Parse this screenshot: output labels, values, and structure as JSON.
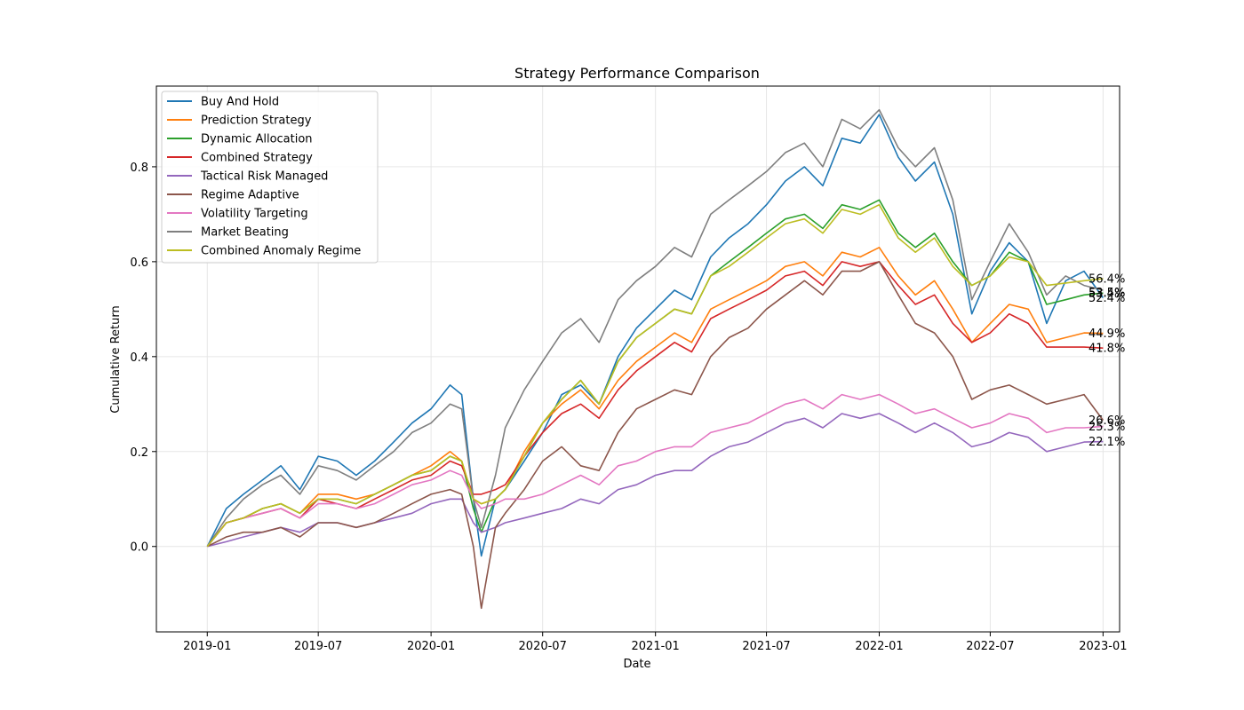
{
  "chart_data": {
    "type": "line",
    "title": "Strategy Performance Comparison",
    "xlabel": "Date",
    "ylabel": "Cumulative Return",
    "xlim": [
      "2018-10-10",
      "2023-01-28"
    ],
    "ylim": [
      -0.18,
      0.97
    ],
    "x_ticks": [
      "2019-01",
      "2019-07",
      "2020-01",
      "2020-07",
      "2021-01",
      "2021-07",
      "2022-01",
      "2022-07",
      "2023-01"
    ],
    "y_ticks": [
      0.0,
      0.2,
      0.4,
      0.6,
      0.8
    ],
    "y_tick_labels": [
      "0.0",
      "0.2",
      "0.4",
      "0.6",
      "0.8"
    ],
    "grid": true,
    "legend_position": "top-left",
    "dates": [
      "2019-01-01",
      "2019-02-01",
      "2019-03-01",
      "2019-04-01",
      "2019-05-01",
      "2019-06-01",
      "2019-07-01",
      "2019-08-01",
      "2019-09-01",
      "2019-10-01",
      "2019-11-01",
      "2019-12-01",
      "2020-01-01",
      "2020-02-01",
      "2020-02-20",
      "2020-03-10",
      "2020-03-23",
      "2020-04-15",
      "2020-05-01",
      "2020-06-01",
      "2020-07-01",
      "2020-08-01",
      "2020-09-01",
      "2020-10-01",
      "2020-11-01",
      "2020-12-01",
      "2021-01-01",
      "2021-02-01",
      "2021-03-01",
      "2021-04-01",
      "2021-05-01",
      "2021-06-01",
      "2021-07-01",
      "2021-08-01",
      "2021-09-01",
      "2021-10-01",
      "2021-11-01",
      "2021-12-01",
      "2022-01-01",
      "2022-02-01",
      "2022-03-01",
      "2022-04-01",
      "2022-05-01",
      "2022-06-01",
      "2022-07-01",
      "2022-08-01",
      "2022-09-01",
      "2022-10-01",
      "2022-11-01",
      "2022-12-01",
      "2023-01-01"
    ],
    "series": [
      {
        "name": "Buy And Hold",
        "color": "#1f77b4",
        "values": [
          0.0,
          0.08,
          0.11,
          0.14,
          0.17,
          0.12,
          0.19,
          0.18,
          0.15,
          0.18,
          0.22,
          0.26,
          0.29,
          0.34,
          0.32,
          0.1,
          -0.02,
          0.1,
          0.12,
          0.18,
          0.24,
          0.32,
          0.34,
          0.3,
          0.4,
          0.46,
          0.5,
          0.54,
          0.52,
          0.61,
          0.65,
          0.68,
          0.72,
          0.77,
          0.8,
          0.76,
          0.86,
          0.85,
          0.91,
          0.82,
          0.77,
          0.81,
          0.7,
          0.49,
          0.58,
          0.64,
          0.6,
          0.47,
          0.56,
          0.58,
          0.524
        ]
      },
      {
        "name": "Prediction Strategy",
        "color": "#ff7f0e",
        "values": [
          0.0,
          0.05,
          0.06,
          0.08,
          0.09,
          0.07,
          0.11,
          0.11,
          0.1,
          0.11,
          0.13,
          0.15,
          0.17,
          0.2,
          0.18,
          0.1,
          0.09,
          0.1,
          0.12,
          0.2,
          0.26,
          0.3,
          0.33,
          0.29,
          0.35,
          0.39,
          0.42,
          0.45,
          0.43,
          0.5,
          0.52,
          0.54,
          0.56,
          0.59,
          0.6,
          0.57,
          0.62,
          0.61,
          0.63,
          0.57,
          0.53,
          0.56,
          0.5,
          0.43,
          0.47,
          0.51,
          0.5,
          0.43,
          0.44,
          0.45,
          0.449
        ]
      },
      {
        "name": "Dynamic Allocation",
        "color": "#2ca02c",
        "values": [
          0.0,
          0.05,
          0.06,
          0.08,
          0.09,
          0.07,
          0.1,
          0.1,
          0.09,
          0.11,
          0.13,
          0.15,
          0.16,
          0.19,
          0.18,
          0.08,
          0.03,
          0.1,
          0.12,
          0.19,
          0.26,
          0.31,
          0.35,
          0.3,
          0.39,
          0.44,
          0.47,
          0.5,
          0.49,
          0.57,
          0.6,
          0.63,
          0.66,
          0.69,
          0.7,
          0.67,
          0.72,
          0.71,
          0.73,
          0.66,
          0.63,
          0.66,
          0.6,
          0.55,
          0.57,
          0.62,
          0.6,
          0.51,
          0.52,
          0.53,
          0.534
        ]
      },
      {
        "name": "Combined Strategy",
        "color": "#d62728",
        "values": [
          0.0,
          0.05,
          0.06,
          0.07,
          0.08,
          0.06,
          0.1,
          0.09,
          0.08,
          0.1,
          0.12,
          0.14,
          0.15,
          0.18,
          0.17,
          0.11,
          0.11,
          0.12,
          0.13,
          0.19,
          0.24,
          0.28,
          0.3,
          0.27,
          0.33,
          0.37,
          0.4,
          0.43,
          0.41,
          0.48,
          0.5,
          0.52,
          0.54,
          0.57,
          0.58,
          0.55,
          0.6,
          0.59,
          0.6,
          0.55,
          0.51,
          0.53,
          0.47,
          0.43,
          0.45,
          0.49,
          0.47,
          0.42,
          0.42,
          0.42,
          0.418
        ]
      },
      {
        "name": "Tactical Risk Managed",
        "color": "#9467bd",
        "values": [
          0.0,
          0.01,
          0.02,
          0.03,
          0.04,
          0.03,
          0.05,
          0.05,
          0.04,
          0.05,
          0.06,
          0.07,
          0.09,
          0.1,
          0.1,
          0.05,
          0.03,
          0.04,
          0.05,
          0.06,
          0.07,
          0.08,
          0.1,
          0.09,
          0.12,
          0.13,
          0.15,
          0.16,
          0.16,
          0.19,
          0.21,
          0.22,
          0.24,
          0.26,
          0.27,
          0.25,
          0.28,
          0.27,
          0.28,
          0.26,
          0.24,
          0.26,
          0.24,
          0.21,
          0.22,
          0.24,
          0.23,
          0.2,
          0.21,
          0.22,
          0.221
        ]
      },
      {
        "name": "Regime Adaptive",
        "color": "#8c564b",
        "values": [
          0.0,
          0.02,
          0.03,
          0.03,
          0.04,
          0.02,
          0.05,
          0.05,
          0.04,
          0.05,
          0.07,
          0.09,
          0.11,
          0.12,
          0.11,
          0.0,
          -0.13,
          0.04,
          0.07,
          0.12,
          0.18,
          0.21,
          0.17,
          0.16,
          0.24,
          0.29,
          0.31,
          0.33,
          0.32,
          0.4,
          0.44,
          0.46,
          0.5,
          0.53,
          0.56,
          0.53,
          0.58,
          0.58,
          0.6,
          0.53,
          0.47,
          0.45,
          0.4,
          0.31,
          0.33,
          0.34,
          0.32,
          0.3,
          0.31,
          0.32,
          0.266
        ]
      },
      {
        "name": "Volatility Targeting",
        "color": "#e377c2",
        "values": [
          0.0,
          0.05,
          0.06,
          0.07,
          0.08,
          0.06,
          0.09,
          0.09,
          0.08,
          0.09,
          0.11,
          0.13,
          0.14,
          0.16,
          0.15,
          0.1,
          0.08,
          0.09,
          0.1,
          0.1,
          0.11,
          0.13,
          0.15,
          0.13,
          0.17,
          0.18,
          0.2,
          0.21,
          0.21,
          0.24,
          0.25,
          0.26,
          0.28,
          0.3,
          0.31,
          0.29,
          0.32,
          0.31,
          0.32,
          0.3,
          0.28,
          0.29,
          0.27,
          0.25,
          0.26,
          0.28,
          0.27,
          0.24,
          0.25,
          0.25,
          0.253
        ]
      },
      {
        "name": "Market Beating",
        "color": "#7f7f7f",
        "values": [
          0.0,
          0.06,
          0.1,
          0.13,
          0.15,
          0.11,
          0.17,
          0.16,
          0.14,
          0.17,
          0.2,
          0.24,
          0.26,
          0.3,
          0.29,
          0.1,
          0.04,
          0.15,
          0.25,
          0.33,
          0.39,
          0.45,
          0.48,
          0.43,
          0.52,
          0.56,
          0.59,
          0.63,
          0.61,
          0.7,
          0.73,
          0.76,
          0.79,
          0.83,
          0.85,
          0.8,
          0.9,
          0.88,
          0.92,
          0.84,
          0.8,
          0.84,
          0.73,
          0.52,
          0.6,
          0.68,
          0.62,
          0.53,
          0.57,
          0.55,
          0.54
        ]
      },
      {
        "name": "Combined Anomaly Regime",
        "color": "#bcbd22",
        "values": [
          0.0,
          0.05,
          0.06,
          0.08,
          0.09,
          0.07,
          0.1,
          0.1,
          0.09,
          0.11,
          0.13,
          0.15,
          0.16,
          0.19,
          0.18,
          0.1,
          0.09,
          0.1,
          0.12,
          0.19,
          0.26,
          0.31,
          0.35,
          0.3,
          0.39,
          0.44,
          0.47,
          0.5,
          0.49,
          0.57,
          0.59,
          0.62,
          0.65,
          0.68,
          0.69,
          0.66,
          0.71,
          0.7,
          0.72,
          0.65,
          0.62,
          0.65,
          0.59,
          0.55,
          0.57,
          0.61,
          0.6,
          0.55,
          0.555,
          0.56,
          0.564
        ]
      }
    ],
    "end_labels": [
      {
        "text": "56.4%",
        "value": 0.564
      },
      {
        "text": "53.5%",
        "value": 0.535
      },
      {
        "text": "53.4%",
        "value": 0.534
      },
      {
        "text": "52.4%",
        "value": 0.524
      },
      {
        "text": "44.9%",
        "value": 0.449
      },
      {
        "text": "41.8%",
        "value": 0.418
      },
      {
        "text": "26.6%",
        "value": 0.266
      },
      {
        "text": "25.3%",
        "value": 0.253
      },
      {
        "text": "22.1%",
        "value": 0.221
      }
    ]
  }
}
